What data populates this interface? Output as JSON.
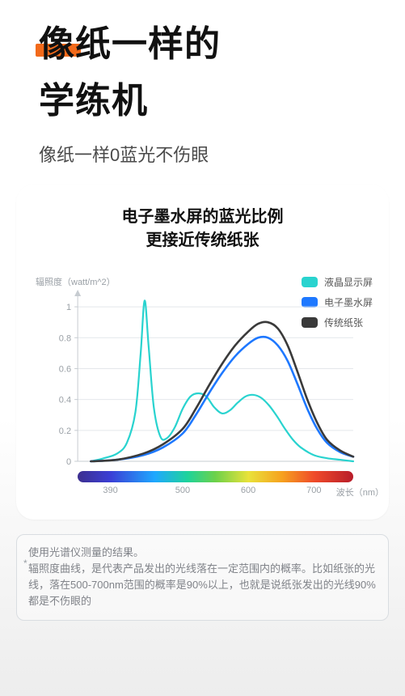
{
  "header": {
    "title_line1": "像纸一样的",
    "title_line2": "学练机",
    "underline_color": "#f26a1b",
    "subtitle": "像纸一样0蓝光不伤眼"
  },
  "card": {
    "title_line1": "电子墨水屏的蓝光比例",
    "title_line2": "更接近传统纸张"
  },
  "chart": {
    "type": "line",
    "ylabel": "辐照度（watt/m^2）",
    "xlabel": "波长（nm）",
    "ylim": [
      0,
      1.1
    ],
    "yticks": [
      0,
      0.2,
      0.4,
      0.6,
      0.8,
      1
    ],
    "xlim": [
      340,
      760
    ],
    "xticks": [
      390,
      500,
      600,
      700
    ],
    "xtick_labels": [
      "390",
      "500",
      "600",
      "700"
    ],
    "grid_color": "#e4e7eb",
    "axis_color": "#c7ccd1",
    "tick_fontsize": 11,
    "tick_color": "#9aa0a6",
    "legend": [
      {
        "label": "液晶显示屏",
        "color": "#29d3cf"
      },
      {
        "label": "电子墨水屏",
        "color": "#1e78ff"
      },
      {
        "label": "传统纸张",
        "color": "#3a3a3a"
      }
    ],
    "series": [
      {
        "name": "液晶显示屏",
        "color": "#29d3cf",
        "width": 2.2,
        "points": [
          [
            360,
            0.0
          ],
          [
            380,
            0.02
          ],
          [
            400,
            0.05
          ],
          [
            415,
            0.12
          ],
          [
            428,
            0.32
          ],
          [
            436,
            0.7
          ],
          [
            442,
            1.04
          ],
          [
            448,
            0.75
          ],
          [
            456,
            0.35
          ],
          [
            466,
            0.16
          ],
          [
            476,
            0.15
          ],
          [
            488,
            0.22
          ],
          [
            500,
            0.34
          ],
          [
            512,
            0.42
          ],
          [
            524,
            0.44
          ],
          [
            536,
            0.42
          ],
          [
            548,
            0.35
          ],
          [
            560,
            0.31
          ],
          [
            572,
            0.33
          ],
          [
            584,
            0.38
          ],
          [
            596,
            0.42
          ],
          [
            608,
            0.43
          ],
          [
            620,
            0.41
          ],
          [
            632,
            0.36
          ],
          [
            644,
            0.29
          ],
          [
            656,
            0.21
          ],
          [
            668,
            0.14
          ],
          [
            680,
            0.09
          ],
          [
            700,
            0.04
          ],
          [
            720,
            0.02
          ],
          [
            740,
            0.01
          ],
          [
            760,
            0.0
          ]
        ]
      },
      {
        "name": "电子墨水屏",
        "color": "#1e78ff",
        "width": 2.6,
        "points": [
          [
            360,
            0.0
          ],
          [
            400,
            0.01
          ],
          [
            440,
            0.04
          ],
          [
            470,
            0.09
          ],
          [
            500,
            0.18
          ],
          [
            520,
            0.3
          ],
          [
            540,
            0.44
          ],
          [
            560,
            0.57
          ],
          [
            580,
            0.68
          ],
          [
            600,
            0.76
          ],
          [
            615,
            0.8
          ],
          [
            630,
            0.8
          ],
          [
            645,
            0.75
          ],
          [
            660,
            0.65
          ],
          [
            675,
            0.5
          ],
          [
            690,
            0.34
          ],
          [
            705,
            0.21
          ],
          [
            720,
            0.12
          ],
          [
            740,
            0.06
          ],
          [
            760,
            0.03
          ]
        ]
      },
      {
        "name": "传统纸张",
        "color": "#3a3a3a",
        "width": 2.6,
        "points": [
          [
            360,
            0.0
          ],
          [
            400,
            0.01
          ],
          [
            440,
            0.05
          ],
          [
            470,
            0.11
          ],
          [
            500,
            0.21
          ],
          [
            520,
            0.34
          ],
          [
            540,
            0.49
          ],
          [
            560,
            0.63
          ],
          [
            580,
            0.75
          ],
          [
            600,
            0.84
          ],
          [
            615,
            0.89
          ],
          [
            630,
            0.9
          ],
          [
            645,
            0.86
          ],
          [
            660,
            0.75
          ],
          [
            675,
            0.58
          ],
          [
            690,
            0.4
          ],
          [
            705,
            0.25
          ],
          [
            720,
            0.14
          ],
          [
            740,
            0.07
          ],
          [
            760,
            0.03
          ]
        ]
      }
    ],
    "spectrum_gradient": [
      "#3d2f8f",
      "#3b3fd6",
      "#1fa8ff",
      "#1fd39a",
      "#6dd14a",
      "#e9e23a",
      "#f6a21f",
      "#ef4a2a",
      "#b81d2a"
    ]
  },
  "note": {
    "line1": "使用光谱仪测量的结果。",
    "line2": "辐照度曲线，是代表产品发出的光线落在一定范围内的概率。比如纸张的光线，落在500-700nm范围的概率是90%以上，也就是说纸张发出的光线90%都是不伤眼的"
  }
}
